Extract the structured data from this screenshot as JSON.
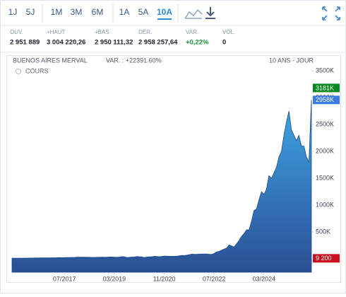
{
  "toolbar": {
    "periods": [
      "1J",
      "5J",
      "1M",
      "3M",
      "6M",
      "1A",
      "5A",
      "10A"
    ],
    "active": 7
  },
  "stats": [
    {
      "label": "OUV.",
      "value": "2 951 889"
    },
    {
      "label": "+HAUT",
      "value": "3 004 220,26"
    },
    {
      "label": "+BAS",
      "value": "2 950 111,32"
    },
    {
      "label": "DER.",
      "value": "2 958 257,64"
    },
    {
      "label": "VAR.",
      "value": "+0,22%",
      "color": "#1a9a3a"
    },
    {
      "label": "VOL.",
      "value": "0"
    }
  ],
  "chart_data": {
    "type": "area",
    "title": "BUENOS AIRES MERVAL",
    "subtitle": "VAR. : +22391.60%",
    "period": "10 ANS - JOUR",
    "legend": "COURS",
    "x": [
      "10/2015",
      "11/2015",
      "12/2015",
      "01/2016",
      "02/2016",
      "03/2016",
      "04/2016",
      "05/2016",
      "06/2016",
      "07/2016",
      "08/2016",
      "09/2016",
      "10/2016",
      "11/2016",
      "12/2016",
      "01/2017",
      "02/2017",
      "03/2017",
      "04/2017",
      "05/2017",
      "06/2017",
      "07/2017",
      "08/2017",
      "09/2017",
      "10/2017",
      "11/2017",
      "12/2017",
      "01/2018",
      "02/2018",
      "03/2018",
      "04/2018",
      "05/2018",
      "06/2018",
      "07/2018",
      "08/2018",
      "09/2018",
      "10/2018",
      "11/2018",
      "12/2018",
      "01/2019",
      "02/2019",
      "03/2019",
      "04/2019",
      "05/2019",
      "06/2019",
      "07/2019",
      "08/2019",
      "09/2019",
      "10/2019",
      "11/2019",
      "12/2019",
      "01/2020",
      "02/2020",
      "03/2020",
      "04/2020",
      "05/2020",
      "06/2020",
      "07/2020",
      "08/2020",
      "09/2020",
      "10/2020",
      "11/2020",
      "12/2020",
      "01/2021",
      "02/2021",
      "03/2021",
      "04/2021",
      "05/2021",
      "06/2021",
      "07/2021",
      "08/2021",
      "09/2021",
      "10/2021",
      "11/2021",
      "12/2021",
      "01/2022",
      "02/2022",
      "03/2022",
      "04/2022",
      "05/2022",
      "06/2022",
      "07/2022",
      "08/2022",
      "09/2022",
      "10/2022",
      "11/2022",
      "12/2022",
      "01/2023",
      "02/2023",
      "03/2023",
      "04/2023",
      "05/2023",
      "06/2023",
      "07/2023",
      "08/2023",
      "09/2023",
      "10/2023",
      "11/2023",
      "12/2023",
      "01/2024",
      "02/2024",
      "03/2024",
      "04/2024",
      "05/2024",
      "06/2024",
      "07/2024",
      "08/2024",
      "09/2024",
      "10/2024",
      "11/2024",
      "12/2024",
      "01/2025",
      "02/2025",
      "03/2025",
      "04/2025",
      "05/2025",
      "06/2025",
      "07/2025",
      "08/2025",
      "09/2025",
      "10/2025"
    ],
    "values": [
      11000,
      12000,
      11700,
      13000,
      11800,
      12900,
      13700,
      14000,
      14500,
      15600,
      16000,
      16600,
      17000,
      17500,
      16900,
      19000,
      20000,
      20200,
      21000,
      21900,
      21500,
      21900,
      24000,
      24100,
      27000,
      26500,
      30000,
      32000,
      31000,
      31100,
      29500,
      28600,
      26000,
      26000,
      28500,
      29500,
      30000,
      29000,
      30300,
      35000,
      34000,
      32000,
      29000,
      33000,
      41000,
      40000,
      25000,
      28000,
      33000,
      35000,
      41700,
      39000,
      38000,
      25000,
      33000,
      38000,
      37000,
      47000,
      45000,
      39000,
      45000,
      52000,
      51000,
      48000,
      47000,
      48000,
      48000,
      56000,
      64000,
      62000,
      67000,
      76000,
      88000,
      85000,
      83500,
      88000,
      88000,
      90000,
      91000,
      86000,
      82000,
      99000,
      126000,
      140000,
      160000,
      180000,
      202000,
      260000,
      240000,
      220000,
      280000,
      340000,
      420000,
      470000,
      540000,
      540000,
      700000,
      900000,
      930000,
      1100000,
      1250000,
      1200000,
      1300000,
      1550000,
      1500000,
      1600000,
      1700000,
      1900000,
      2000000,
      2300000,
      2550000,
      2750000,
      2400000,
      2300000,
      2200000,
      2300000,
      2100000,
      2100000,
      1900000,
      1800000,
      2958000
    ],
    "xticks": [
      "07/2017",
      "03/2019",
      "11/2020",
      "07/2022",
      "03/2024"
    ],
    "ylim": [
      -250000,
      3660000
    ],
    "yticks": [
      {
        "value": 500000,
        "label": "500K"
      },
      {
        "value": 1000000,
        "label": "1000K"
      },
      {
        "value": 1500000,
        "label": "1500K"
      },
      {
        "value": 2000000,
        "label": "2000K"
      },
      {
        "value": 2500000,
        "label": "2500K"
      },
      {
        "value": 3000000,
        "label": "3000K"
      },
      {
        "value": 3500000,
        "label": "3500K"
      }
    ],
    "markers": [
      {
        "value": 3181000,
        "label": "3181K",
        "color": "#0a8a1e"
      },
      {
        "value": 2958000,
        "label": "2958K",
        "color": "#3d7be0"
      },
      {
        "value": 9200,
        "label": "9 200",
        "color": "#c8101e"
      }
    ]
  }
}
